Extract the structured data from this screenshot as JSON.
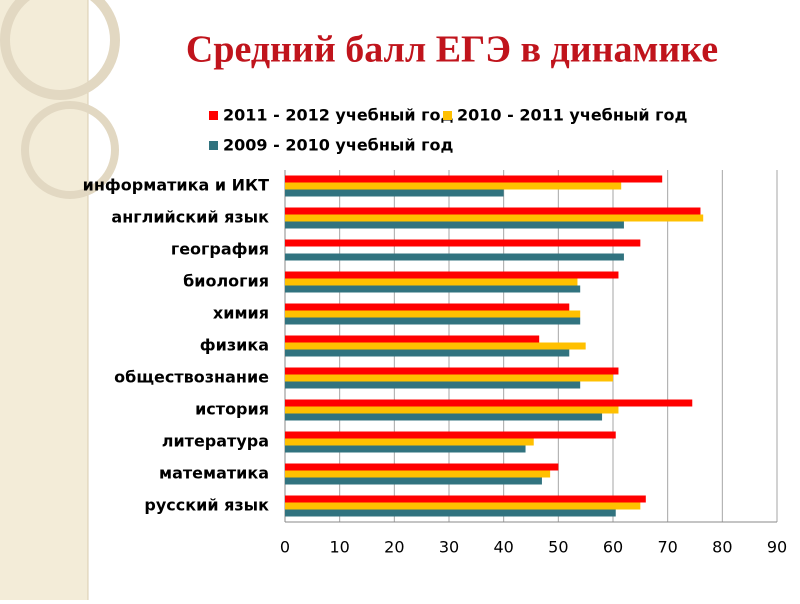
{
  "chart_data": {
    "type": "hbar",
    "title": "Средний балл ЕГЭ в динамике",
    "categories": [
      "информатика и ИКТ",
      "английский язык",
      "география",
      "биология",
      "химия",
      "физика",
      "обществознание",
      "история",
      "литература",
      "математика",
      "русский язык"
    ],
    "series": [
      {
        "name": "2011 - 2012 учебный год",
        "color": "#ff0000",
        "values": [
          69,
          76,
          65,
          61,
          52,
          46.5,
          61,
          74.5,
          60.5,
          50,
          66
        ]
      },
      {
        "name": "2010 - 2011 учебный год",
        "color": "#ffc000",
        "values": [
          61.5,
          76.5,
          null,
          53.5,
          54,
          55,
          60,
          61,
          45.5,
          48.5,
          65
        ]
      },
      {
        "name": "2009 - 2010 учебный год",
        "color": "#31737f",
        "values": [
          40,
          62,
          62,
          54,
          54,
          52,
          54,
          58,
          44,
          47,
          60.5
        ]
      }
    ],
    "xlim": [
      0,
      90
    ],
    "xticks": [
      0,
      10,
      20,
      30,
      40,
      50,
      60,
      70,
      80,
      90
    ],
    "grid": true
  }
}
